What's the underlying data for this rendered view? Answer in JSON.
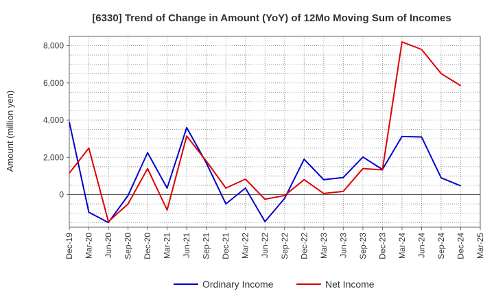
{
  "chart_data": {
    "type": "line",
    "title": "[6330]  Trend of Change in Amount (YoY) of 12Mo Moving Sum of Incomes",
    "xlabel": "",
    "ylabel": "Amount (million yen)",
    "categories": [
      "Dec-19",
      "Mar-20",
      "Jun-20",
      "Sep-20",
      "Dec-20",
      "Mar-21",
      "Jun-21",
      "Sep-21",
      "Dec-21",
      "Mar-22",
      "Jun-22",
      "Sep-22",
      "Dec-22",
      "Mar-23",
      "Jun-23",
      "Sep-23",
      "Dec-23",
      "Mar-24",
      "Jun-24",
      "Sep-24",
      "Dec-24",
      "Mar-25"
    ],
    "ylim": [
      -1750,
      8500
    ],
    "yticks": [
      0,
      2000,
      4000,
      6000,
      8000
    ],
    "ytick_labels": [
      "0",
      "2,000",
      "4,000",
      "6,000",
      "8,000"
    ],
    "grid": true,
    "legend_position": "bottom",
    "series": [
      {
        "name": "Ordinary Income",
        "color": "#0000cc",
        "values": [
          3900,
          -950,
          -1500,
          -50,
          2250,
          350,
          3600,
          1700,
          -500,
          350,
          -1450,
          -200,
          1900,
          800,
          920,
          2020,
          1350,
          3120,
          3100,
          900,
          470,
          null
        ]
      },
      {
        "name": "Net Income",
        "color": "#dd0000",
        "values": [
          1150,
          2500,
          -1450,
          -500,
          1400,
          -830,
          3150,
          1800,
          350,
          830,
          -250,
          -50,
          800,
          60,
          170,
          1400,
          1330,
          8200,
          7800,
          6500,
          5850,
          null
        ]
      }
    ]
  }
}
